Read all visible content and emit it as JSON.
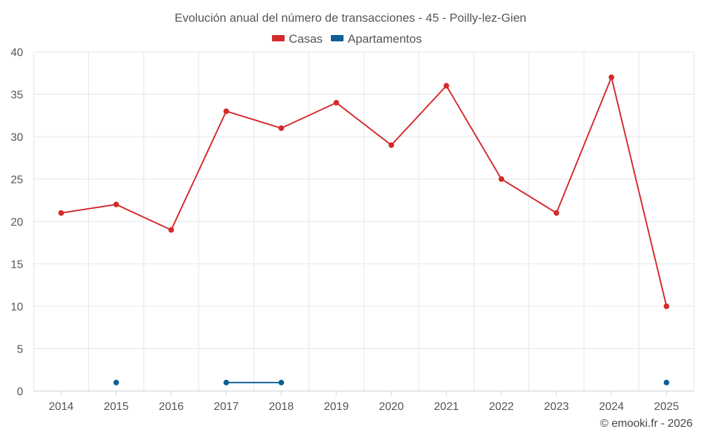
{
  "chart_data": {
    "type": "line",
    "title": "Evolución anual del número de transacciones - 45 - Poilly-lez-Gien",
    "categories": [
      "2014",
      "2015",
      "2016",
      "2017",
      "2018",
      "2019",
      "2020",
      "2021",
      "2022",
      "2023",
      "2024",
      "2025"
    ],
    "series": [
      {
        "name": "Casas",
        "color": "#d42a2a",
        "values": [
          21,
          22,
          19,
          33,
          31,
          34,
          29,
          36,
          25,
          21,
          37,
          10
        ]
      },
      {
        "name": "Apartamentos",
        "color": "#0e5f96",
        "values": [
          null,
          1,
          null,
          1,
          1,
          null,
          null,
          null,
          null,
          null,
          null,
          1
        ]
      }
    ],
    "ylim": [
      0,
      40
    ],
    "yticks": [
      0,
      5,
      10,
      15,
      20,
      25,
      30,
      35,
      40
    ],
    "grid": true,
    "legend": "top-center",
    "credit": "© emooki.fr - 2026"
  }
}
